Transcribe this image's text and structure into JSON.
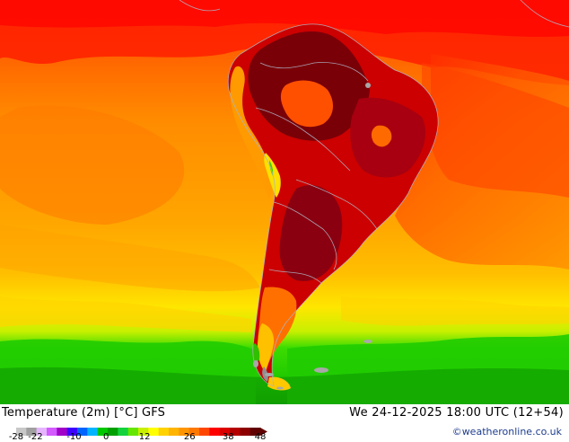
{
  "map": {
    "title_left": "Temperature (2m) [°C] GFS",
    "title_right": "We 24-12-2025 18:00 UTC (12+54)",
    "credit": "©weatheronline.co.uk",
    "region": "South America",
    "legend": {
      "unit": "°C",
      "min": -28,
      "max": 48,
      "tick_labels": [
        "-28",
        "-22",
        "-10",
        "0",
        "12",
        "26",
        "38",
        "48"
      ],
      "tick_values": [
        -28,
        -22,
        -10,
        0,
        12,
        26,
        38,
        48
      ],
      "colors": [
        "#c8c8c8",
        "#a0a0a0",
        "#e6b4ff",
        "#d25aff",
        "#a000c8",
        "#3c00ff",
        "#0064ff",
        "#00b4ff",
        "#00c800",
        "#00a000",
        "#14d23c",
        "#64e600",
        "#c8f000",
        "#ffff00",
        "#ffd200",
        "#ffb400",
        "#ff9600",
        "#ff7800",
        "#ff4600",
        "#ff0000",
        "#dc0000",
        "#b40000",
        "#8c0000",
        "#600000"
      ]
    }
  }
}
